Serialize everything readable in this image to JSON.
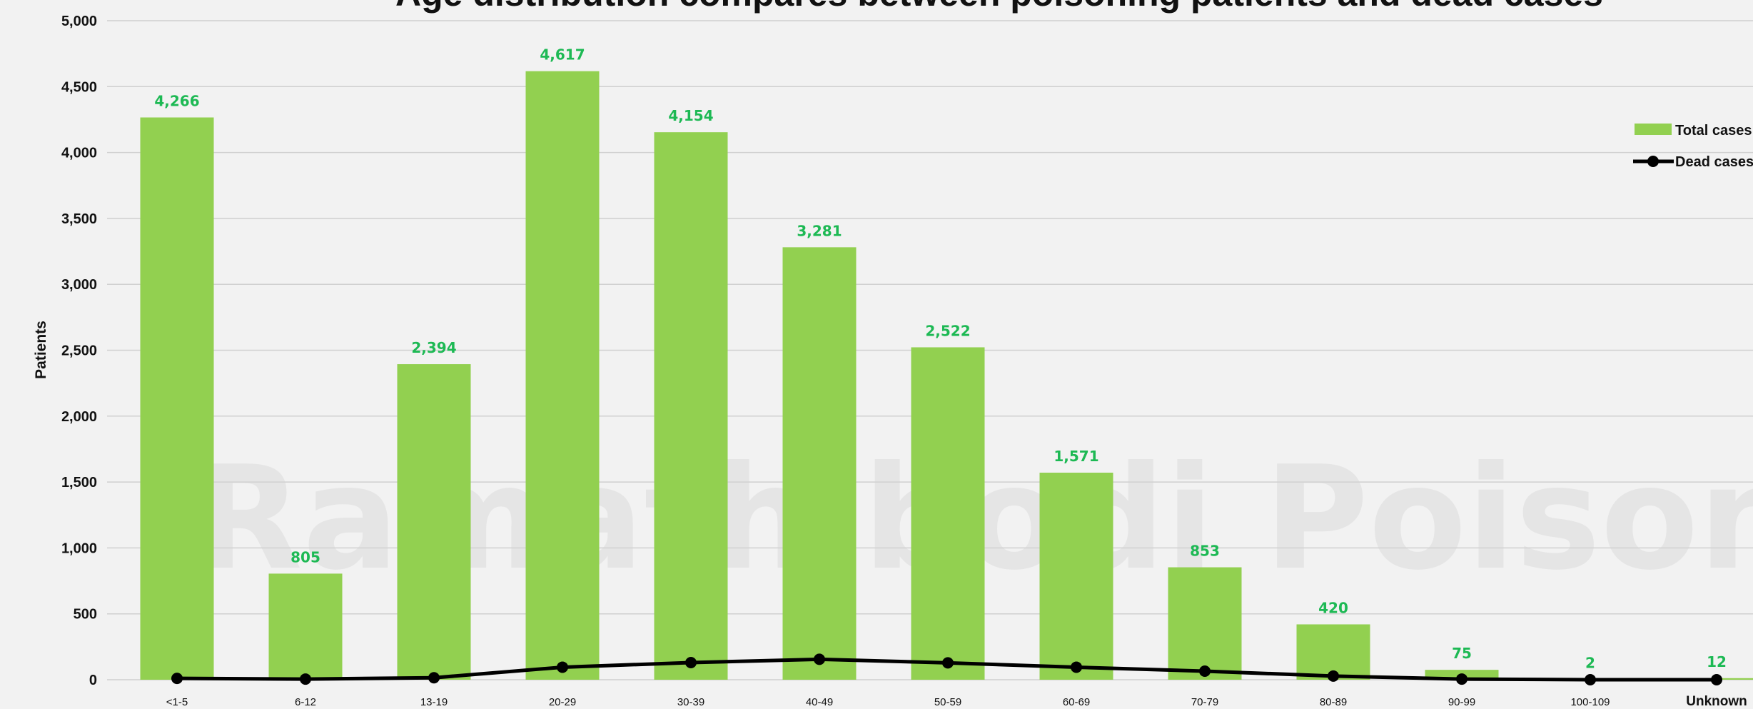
{
  "chart_data": {
    "type": "bar",
    "title": "Age distribution compares between poisoning patients and dead cases",
    "watermark": "Ramathibodi Poison C",
    "ylabel": "Patients",
    "xlabel": "",
    "ylim": [
      0,
      5000
    ],
    "yticks": [
      0,
      500,
      1000,
      1500,
      2000,
      2500,
      3000,
      3500,
      4000,
      4500,
      5000
    ],
    "ytick_labels": [
      "0",
      "500",
      "1,000",
      "1,500",
      "2,000",
      "2,500",
      "3,000",
      "3,500",
      "4,000",
      "4,500",
      "5,000"
    ],
    "categories": [
      "<1-5",
      "6-12",
      "13-19",
      "20-29",
      "30-39",
      "40-49",
      "50-59",
      "60-69",
      "70-79",
      "80-89",
      "90-99",
      "100-109",
      "Unknown"
    ],
    "series": [
      {
        "name": "Total cases",
        "type": "bar",
        "color": "#92d050",
        "label_color": "#1db954",
        "values": [
          4266,
          805,
          2394,
          4617,
          4154,
          3281,
          2522,
          1571,
          853,
          420,
          75,
          2,
          12
        ],
        "labels": [
          "4,266",
          "805",
          "2,394",
          "4,617",
          "4,154",
          "3,281",
          "2,522",
          "1,571",
          "853",
          "420",
          "75",
          "2",
          "12"
        ]
      },
      {
        "name": "Dead cases",
        "type": "line",
        "color": "#000000",
        "values": [
          10,
          5,
          15,
          95,
          130,
          155,
          128,
          95,
          65,
          28,
          5,
          0,
          0
        ]
      }
    ],
    "grid": true,
    "legend_position": "right"
  }
}
